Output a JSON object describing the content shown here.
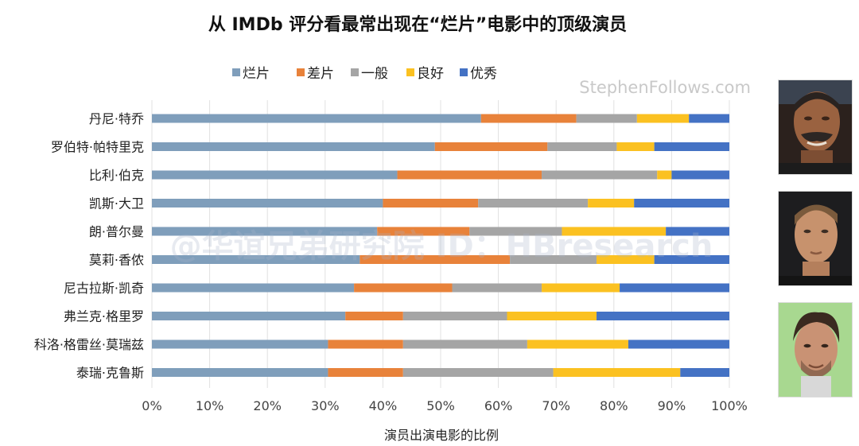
{
  "chart_data": {
    "type": "bar",
    "orientation": "horizontal",
    "stacked": true,
    "title": "从 IMDb 评分看最常出现在“烂片”电影中的顶级演员",
    "xlabel": "演员出演电影的比例",
    "ylabel": "",
    "xlim": [
      0,
      100
    ],
    "x_ticks": [
      "0%",
      "10%",
      "20%",
      "30%",
      "40%",
      "50%",
      "60%",
      "70%",
      "80%",
      "90%",
      "100%"
    ],
    "legend_position": "top",
    "categories": [
      "丹尼·特乔",
      "罗伯特·帕特里克",
      "比利·伯克",
      "凯斯·大卫",
      "朗·普尔曼",
      "莫莉·香侬",
      "尼古拉斯·凯奇",
      "弗兰克·格里罗",
      "科洛·格雷丝·莫瑞兹",
      "泰瑞·克鲁斯"
    ],
    "series": [
      {
        "name": "烂片",
        "color": "#7f9ebb",
        "values": [
          57,
          49,
          42.5,
          40,
          39,
          36,
          35,
          33.5,
          30.5,
          30.5
        ]
      },
      {
        "name": "差片",
        "color": "#e8823a",
        "values": [
          16.5,
          19.5,
          25,
          16.5,
          16,
          26,
          17,
          10,
          13,
          13
        ]
      },
      {
        "name": "一般",
        "color": "#a5a5a5",
        "values": [
          10.5,
          12,
          20,
          19,
          16,
          15,
          15.5,
          18,
          21.5,
          26
        ]
      },
      {
        "name": "良好",
        "color": "#fbc121",
        "values": [
          9,
          6.5,
          2.5,
          8,
          18,
          10,
          13.5,
          15.5,
          17.5,
          22
        ]
      },
      {
        "name": "优秀",
        "color": "#4472c4",
        "values": [
          7,
          13,
          10,
          16.5,
          11,
          13,
          19,
          23,
          17.5,
          8.5
        ]
      }
    ],
    "annotations": {
      "source": "StephenFollows.com",
      "watermark": "@华谊兄弟研究院 ID：HBresearch"
    }
  },
  "photos": [
    {
      "name": "actor-photo-danny-trejo"
    },
    {
      "name": "actor-photo-robert-patrick"
    },
    {
      "name": "actor-photo-billy-burke"
    }
  ]
}
